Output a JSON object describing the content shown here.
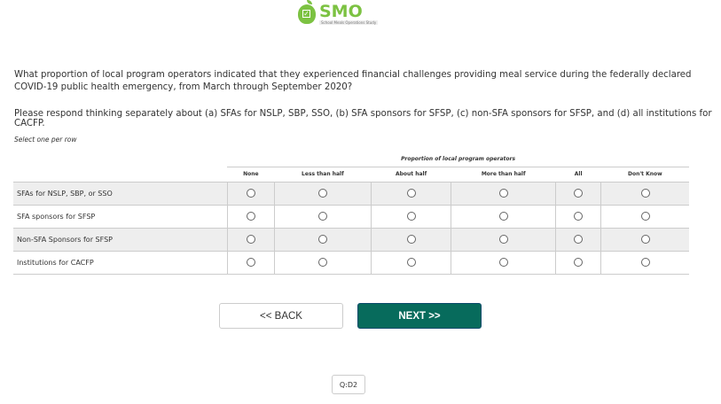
{
  "logo": {
    "text": "SMO",
    "subtitle": "School Meals Operations Study"
  },
  "question": {
    "text": "What proportion of local program operators indicated that they experienced financial challenges providing meal service during the federally declared COVID-19 public health emergency, from March through September 2020?",
    "instruction": "Please respond thinking separately about (a) SFAs for NSLP, SBP, SSO, (b) SFA sponsors for SFSP, (c) non-SFA sponsors for SFSP, and (d) all institutions for CACFP.",
    "hint": "Select one per row"
  },
  "grid": {
    "group_header": "Proportion of local program operators",
    "columns": [
      "None",
      "Less than half",
      "About half",
      "More than half",
      "All",
      "Don't Know"
    ],
    "rows": [
      {
        "label": "SFAs for NSLP, SBP, or SSO"
      },
      {
        "label": "SFA sponsors for SFSP"
      },
      {
        "label": "Non-SFA Sponsors for SFSP"
      },
      {
        "label": "Institutions for CACFP"
      }
    ]
  },
  "nav": {
    "back": "<< BACK",
    "next": "NEXT >>"
  },
  "question_id": "Q:D2",
  "colors": {
    "brand": "#7cc242",
    "next_button": "#076b5c"
  }
}
